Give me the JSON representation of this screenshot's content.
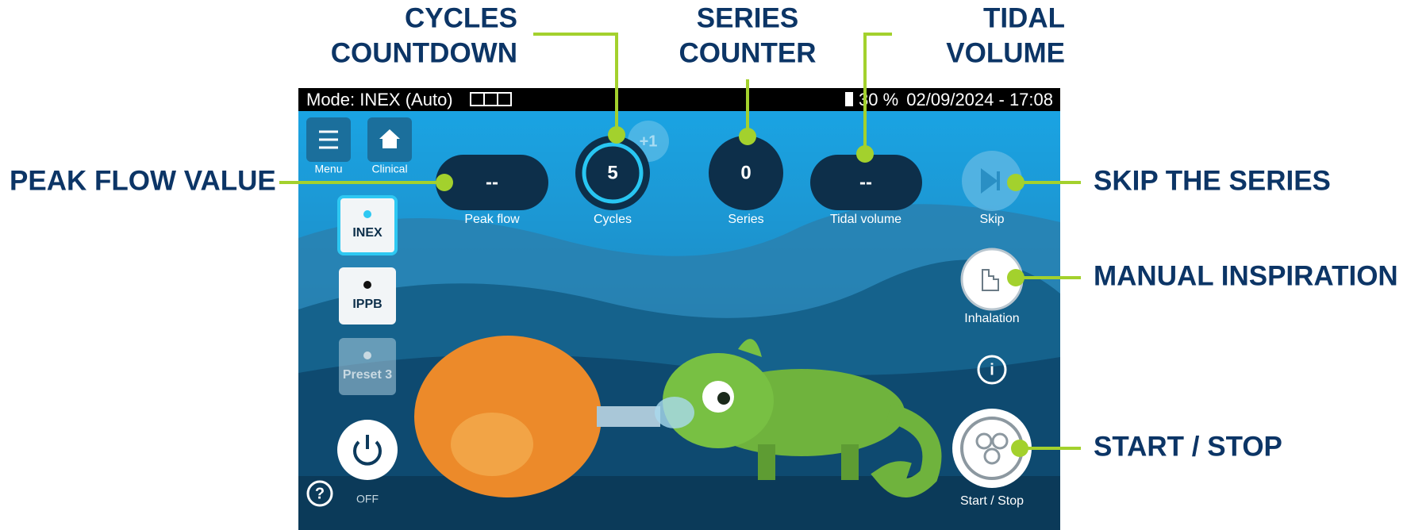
{
  "callouts": {
    "cycles_countdown": [
      "CYCLES",
      "COUNTDOWN"
    ],
    "series_counter": [
      "SERIES",
      "COUNTER"
    ],
    "tidal_volume": [
      "TIDAL",
      "VOLUME"
    ],
    "peak_flow_value": "PEAK FLOW VALUE",
    "skip_the_series": "SKIP THE SERIES",
    "manual_inspiration": "MANUAL INSPIRATION",
    "start_stop": "START / STOP"
  },
  "status_bar": {
    "mode": "Mode: INEX (Auto)",
    "battery": "30 %",
    "datetime": "02/09/2024 - 17:08"
  },
  "screen": {
    "menu": "Menu",
    "clinical": "Clinical",
    "peak_flow": {
      "value": "--",
      "label": "Peak flow"
    },
    "cycles": {
      "value": "5",
      "label": "Cycles",
      "increment": "+1"
    },
    "series": {
      "value": "0",
      "label": "Series"
    },
    "tidal_volume": {
      "value": "--",
      "label": "Tidal volume"
    },
    "skip": "Skip",
    "presets": [
      "INEX",
      "IPPB",
      "Preset 3"
    ],
    "power": "OFF",
    "help": "?",
    "inhalation": "Inhalation",
    "info": "i",
    "start_stop": "Start / Stop"
  }
}
